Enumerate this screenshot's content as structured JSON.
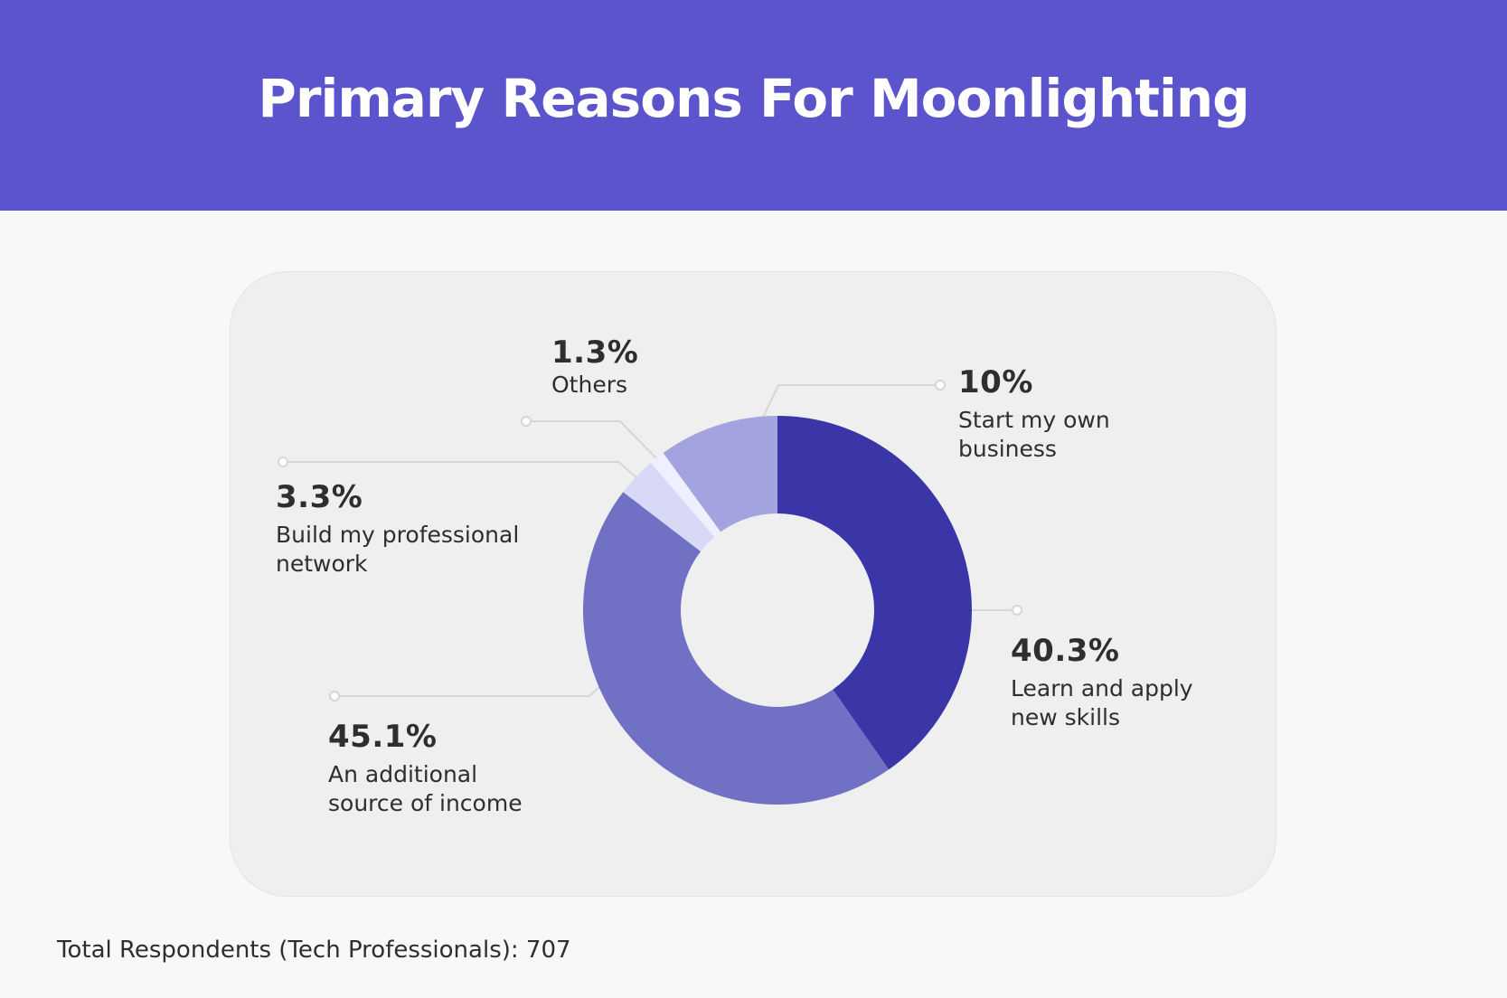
{
  "header": {
    "title": "Primary Reasons For Moonlighting"
  },
  "footer": {
    "note": "Total Respondents (Tech Professionals): 707"
  },
  "colors": {
    "header_bg": "#5b54cc",
    "card_bg": "#efefef",
    "leader_line": "#d6d6d6"
  },
  "chart_data": {
    "type": "pie",
    "style": "donut",
    "start": "12 o'clock",
    "direction": "clockwise",
    "slices": [
      {
        "label": "Learn and apply new skills",
        "value": 40.3,
        "value_label": "40.3%",
        "color": "#3a36a8"
      },
      {
        "label": "An additional source of income",
        "value": 45.1,
        "value_label": "45.1%",
        "color": "#7070c5"
      },
      {
        "label": "Build my professional network",
        "value": 3.3,
        "value_label": "3.3%",
        "color": "#d8d8f7"
      },
      {
        "label": "Others",
        "value": 1.3,
        "value_label": "1.3%",
        "color": "#efefff"
      },
      {
        "label": "Start my own business",
        "value": 10,
        "value_label": "10%",
        "color": "#a3a3df"
      }
    ]
  }
}
